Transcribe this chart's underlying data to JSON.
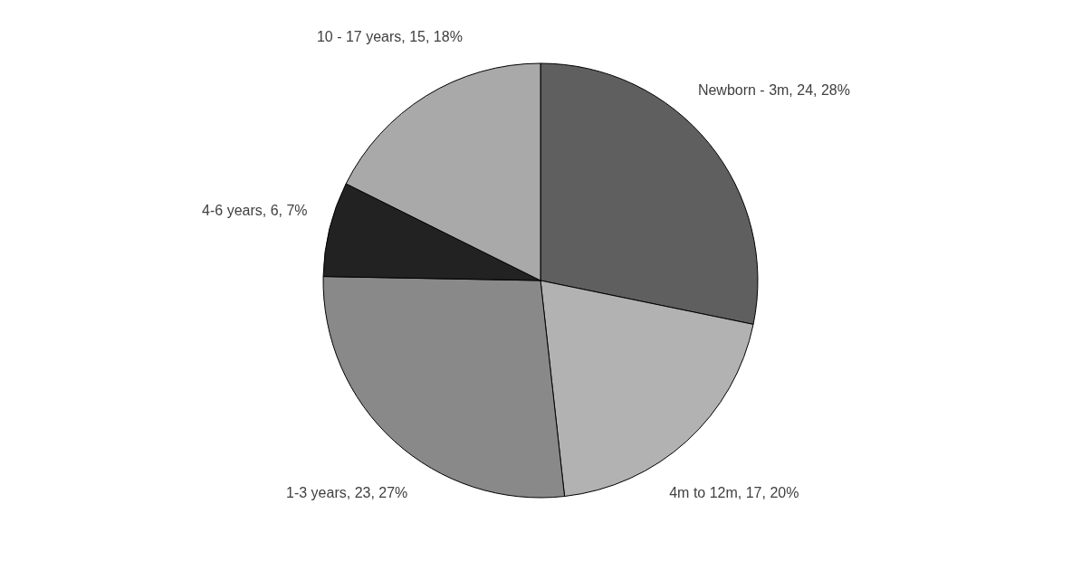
{
  "chart_data": {
    "type": "pie",
    "categories": [
      "Newborn - 3m",
      "4m to 12m",
      "1-3 years",
      "4-6 years",
      "10 - 17 years"
    ],
    "values": [
      24,
      17,
      23,
      6,
      15
    ],
    "colors": [
      "#5f5f5f",
      "#b2b2b2",
      "#898989",
      "#222222",
      "#a9a9a9"
    ],
    "value_labels": [
      "24, 28%",
      "17, 20%",
      "23, 27%",
      "6, 7%",
      "15, 18%"
    ]
  }
}
